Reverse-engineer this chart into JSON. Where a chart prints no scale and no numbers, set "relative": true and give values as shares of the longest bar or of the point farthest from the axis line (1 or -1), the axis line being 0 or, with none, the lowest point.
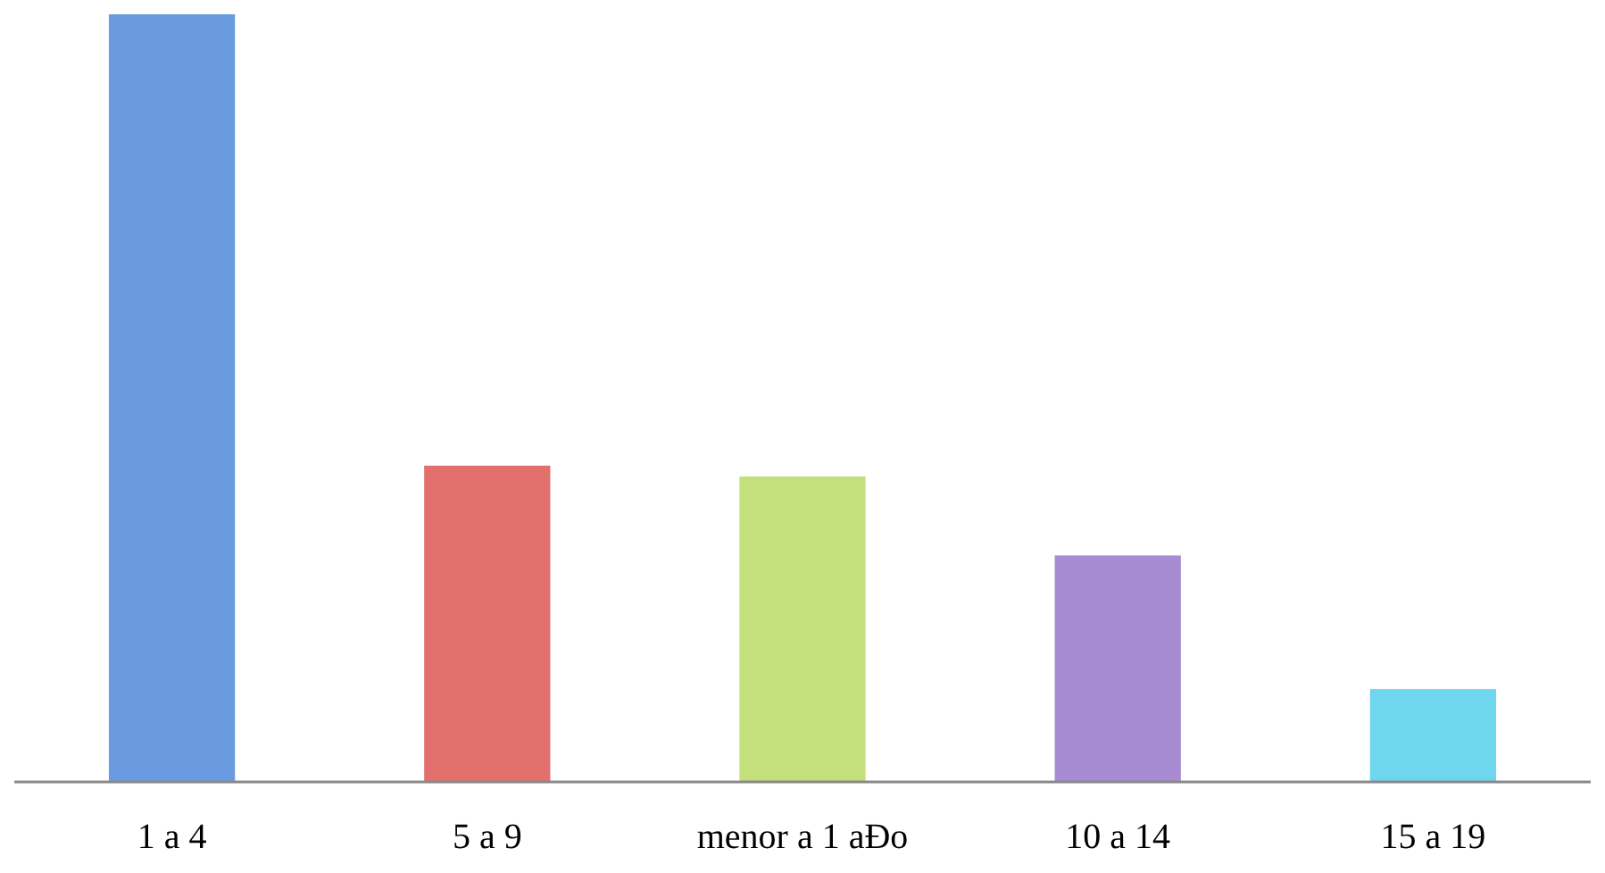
{
  "chart_data": {
    "type": "bar",
    "relative": true,
    "categories": [
      "1 a 4",
      "5 a 9",
      "menor a 1 aĐo",
      "10 a 14",
      "15 a 19"
    ],
    "values": [
      1,
      0.412,
      0.398,
      0.295,
      0.121
    ],
    "colors": [
      "#6a9be0",
      "#e2716d",
      "#c4e07c",
      "#a68bd2",
      "#6fd6ee"
    ]
  }
}
